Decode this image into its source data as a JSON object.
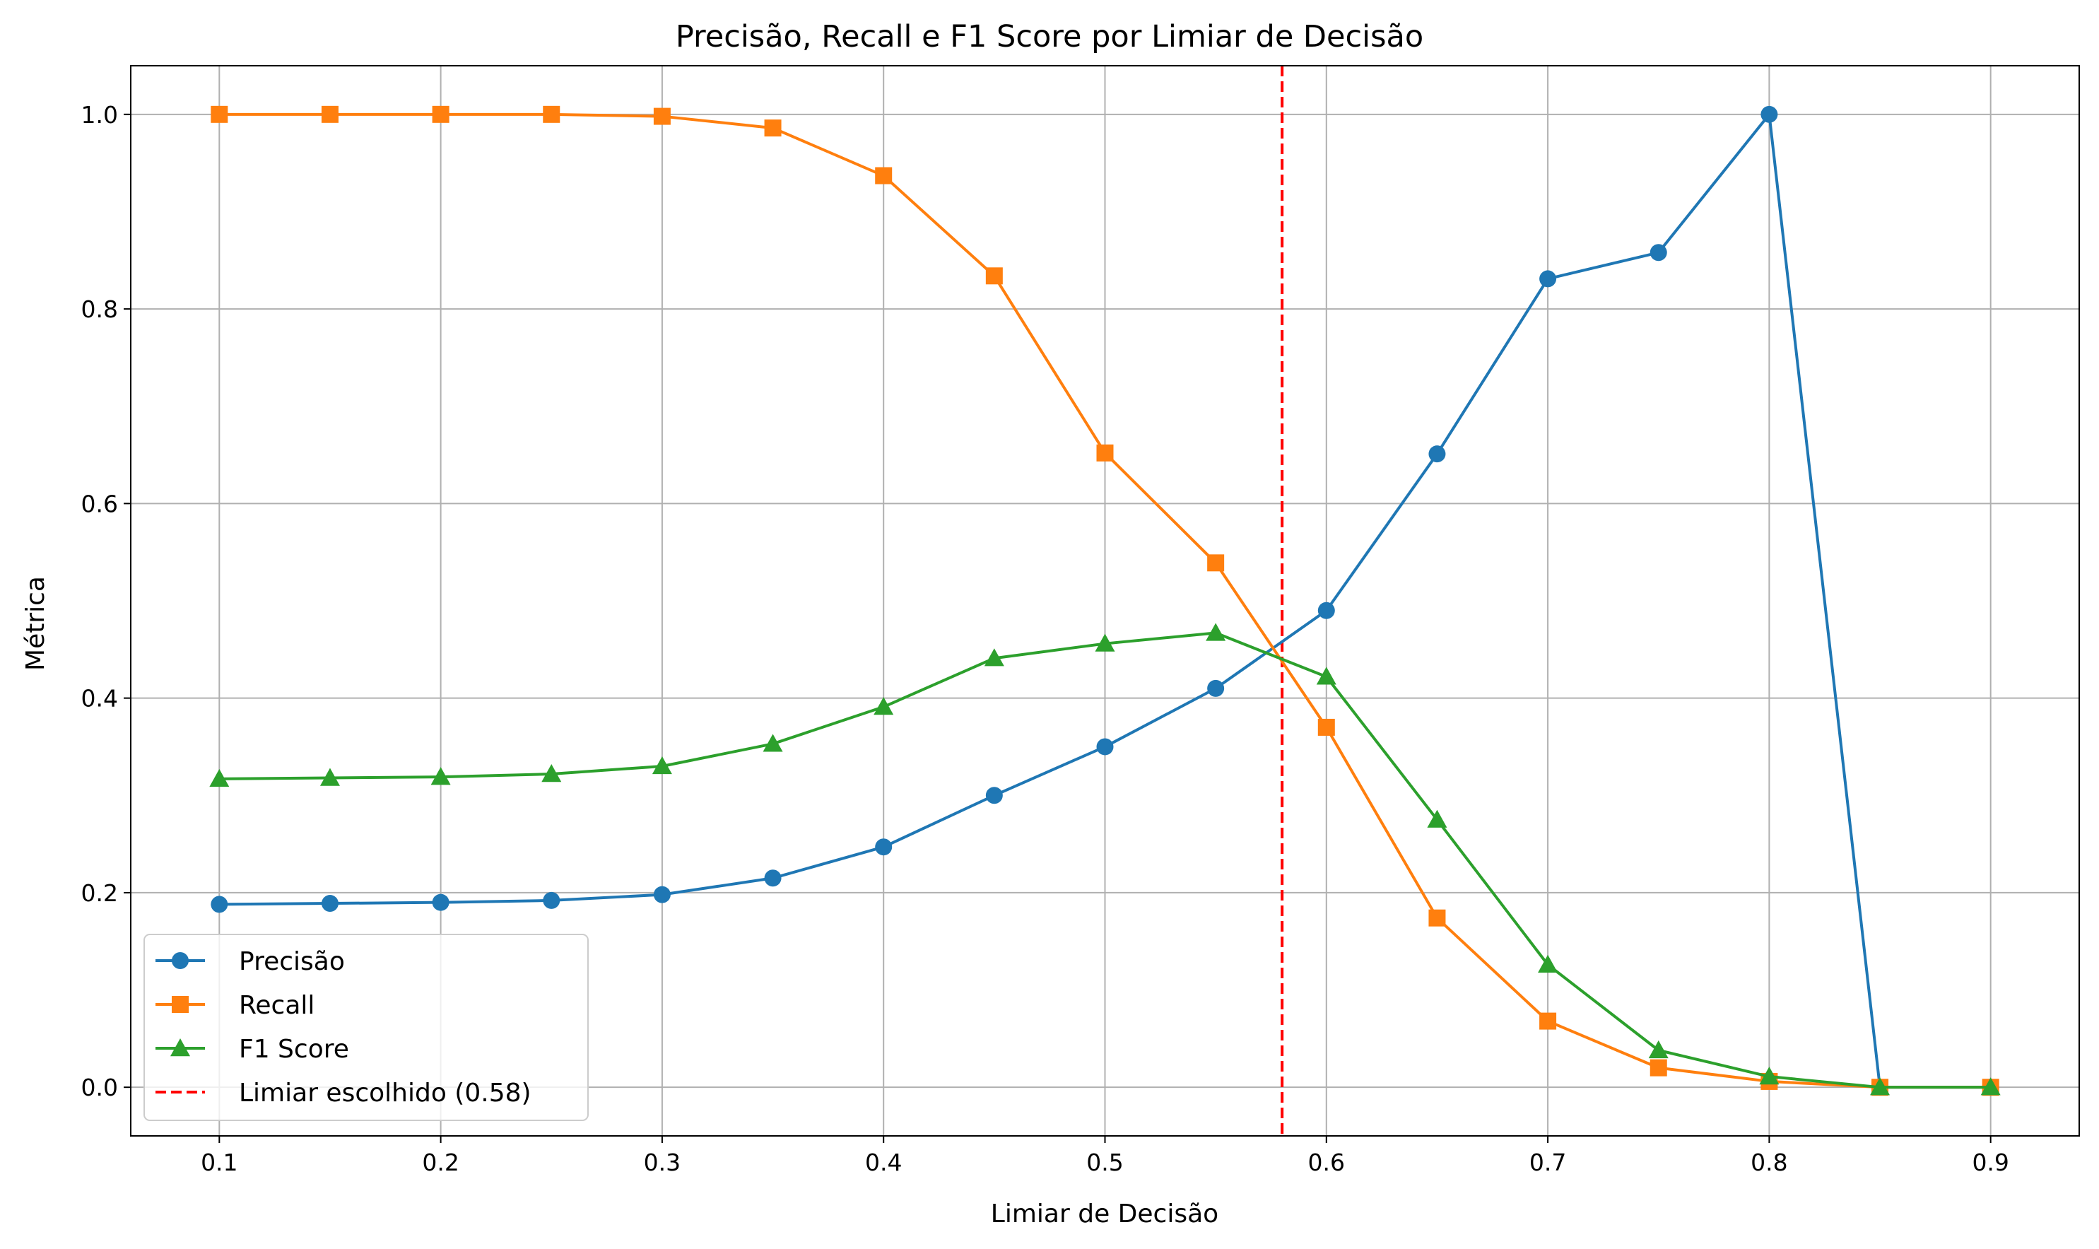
{
  "chart_data": {
    "type": "line",
    "title": "Precisão, Recall e F1 Score por Limiar de Decisão",
    "xlabel": "Limiar de Decisão",
    "ylabel": "Métrica",
    "xlim": [
      0.06,
      0.94
    ],
    "ylim": [
      -0.05,
      1.05
    ],
    "grid": true,
    "legend_position": "lower-left",
    "x_ticks": [
      0.1,
      0.2,
      0.3,
      0.4,
      0.5,
      0.6,
      0.7,
      0.8,
      0.9
    ],
    "x_tick_labels": [
      "0.1",
      "0.2",
      "0.3",
      "0.4",
      "0.5",
      "0.6",
      "0.7",
      "0.8",
      "0.9"
    ],
    "y_ticks": [
      0.0,
      0.2,
      0.4,
      0.6,
      0.8,
      1.0
    ],
    "y_tick_labels": [
      "0.0",
      "0.2",
      "0.4",
      "0.6",
      "0.8",
      "1.0"
    ],
    "x": [
      0.1,
      0.15,
      0.2,
      0.25,
      0.3,
      0.35,
      0.4,
      0.45,
      0.5,
      0.55,
      0.6,
      0.65,
      0.7,
      0.75,
      0.8,
      0.85,
      0.9
    ],
    "series": [
      {
        "name": "Precisão",
        "color": "#1f77b4",
        "marker": "circle",
        "values": [
          0.188,
          0.189,
          0.19,
          0.192,
          0.198,
          0.215,
          0.247,
          0.3,
          0.35,
          0.41,
          0.49,
          0.651,
          0.831,
          0.858,
          1.0,
          0.0,
          0.0
        ]
      },
      {
        "name": "Recall",
        "color": "#ff7f0e",
        "marker": "square",
        "values": [
          1.0,
          1.0,
          1.0,
          1.0,
          0.998,
          0.986,
          0.937,
          0.834,
          0.652,
          0.539,
          0.37,
          0.174,
          0.068,
          0.02,
          0.006,
          0.0,
          0.0
        ]
      },
      {
        "name": "F1 Score",
        "color": "#2ca02c",
        "marker": "triangle",
        "values": [
          0.317,
          0.318,
          0.319,
          0.322,
          0.33,
          0.353,
          0.391,
          0.441,
          0.456,
          0.467,
          0.422,
          0.275,
          0.126,
          0.038,
          0.011,
          0.0,
          0.0
        ]
      }
    ],
    "annotations": [
      {
        "type": "vline",
        "x": 0.58,
        "label": "Limiar escolhido (0.58)",
        "color": "#ff0000",
        "style": "dashed"
      }
    ]
  }
}
